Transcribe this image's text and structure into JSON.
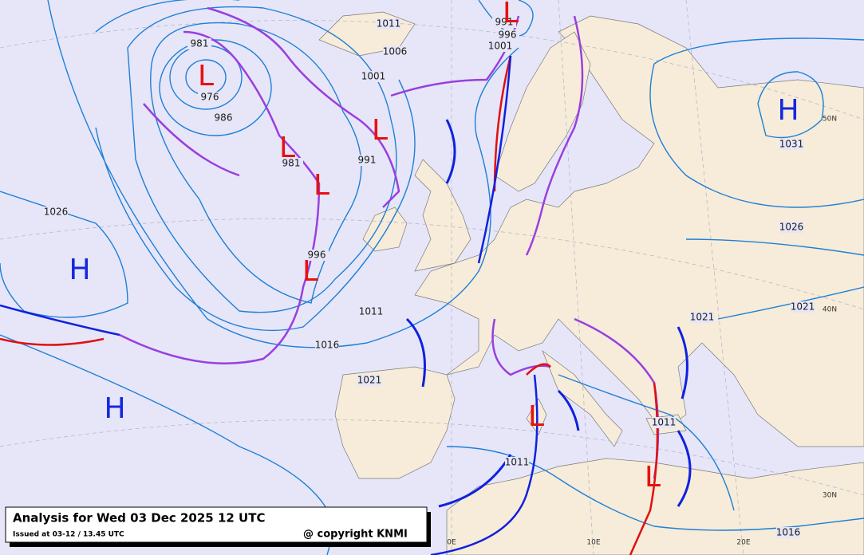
{
  "legend": {
    "title": "Analysis for Wed 03 Dec 2025 12 UTC",
    "issued": "Issued at 03-12 / 13.45 UTC",
    "copyright": "@ copyright KNMI"
  },
  "isobar_labels": [
    "1011",
    "1006",
    "1001",
    "991",
    "996",
    "1001",
    "981",
    "976",
    "986",
    "981",
    "991",
    "996",
    "1026",
    "1031",
    "1026",
    "1021",
    "1011",
    "1016",
    "1021",
    "1021",
    "1011",
    "1011",
    "1016"
  ],
  "pressure_centers": [
    "H",
    "H",
    "H",
    "L",
    "L",
    "L",
    "L",
    "L",
    "L",
    "L",
    "L"
  ],
  "graticule_labels": [
    "50N",
    "40N",
    "30N",
    "0E",
    "10E",
    "20E"
  ]
}
